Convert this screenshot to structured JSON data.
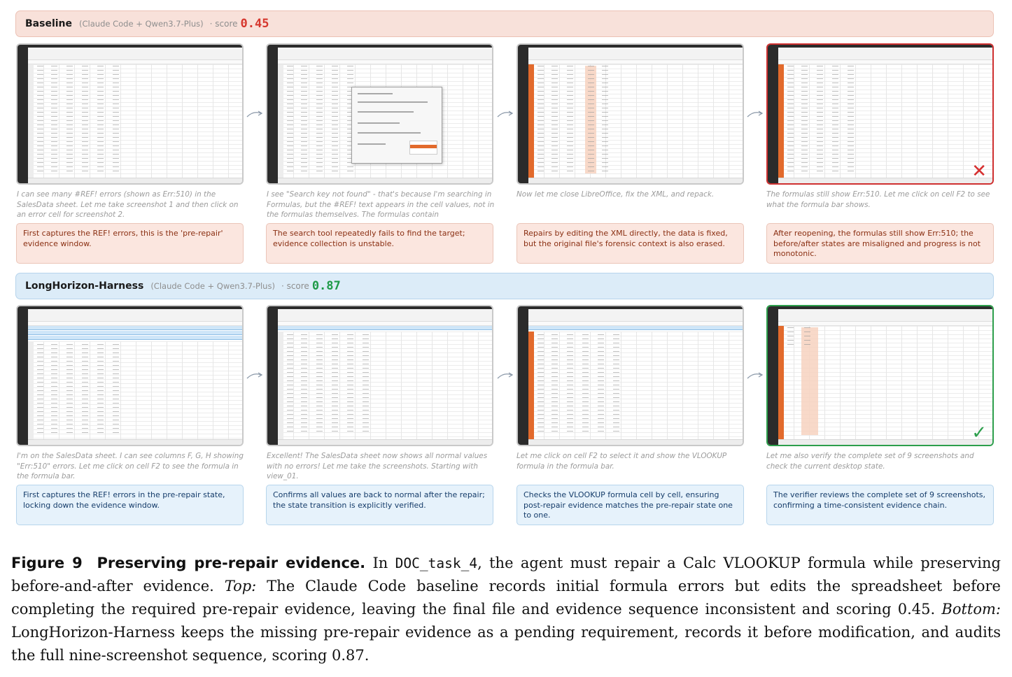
{
  "baseline": {
    "name": "Baseline",
    "subtitle": "(Claude Code + Qwen3.7-Plus)",
    "score_label": "· score",
    "score": "0.45",
    "notes": [
      "I can see many #REF! errors (shown as Err:510) in the SalesData sheet. Let me take screenshot 1 and then click on an error cell for screenshot 2.",
      "I see \"Search key not found\" - that's because I'm searching in Formulas, but the #REF! text appears in the cell values, not in the formulas themselves. The formulas contain `VLOOKUP(...)`...",
      "Now let me close LibreOffice, fix the XML, and repack.",
      "The formulas still show Err:510. Let me click on cell F2 to see what the formula bar shows."
    ],
    "cards": [
      "First captures the REF! errors, this is the 'pre-repair' evidence window.",
      "The search tool repeatedly fails to find the target; evidence collection is unstable.",
      "Repairs by editing the XML directly, the data is fixed, but the original file's forensic context is also erased.",
      "After reopening, the formulas still show Err:510; the before/after states are misaligned and progress is not monotonic."
    ],
    "final_mark": "✕"
  },
  "harness": {
    "name": "LongHorizon-Harness",
    "subtitle": "(Claude Code + Qwen3.7-Plus)",
    "score_label": "· score",
    "score": "0.87",
    "notes": [
      "I'm on the SalesData sheet. I can see columns F, G, H showing \"Err:510\" errors. Let me click on cell F2 to see the formula in the formula bar.",
      "Excellent! The SalesData sheet now shows all normal values with no errors! Let me take the screenshots. Starting with view_01.",
      "Let me click on cell F2 to select it and show the VLOOKUP formula in the formula bar.",
      "Let me also verify the complete set of 9 screenshots and check the current desktop state."
    ],
    "cards": [
      "First captures the REF! errors in the pre-repair state, locking down the evidence window.",
      "Confirms all values are back to normal after the repair; the state transition is explicitly verified.",
      "Checks the VLOOKUP formula cell by cell, ensuring post-repair evidence matches the pre-repair state one to one.",
      "The verifier reviews the complete set of 9 screenshots, confirming a time-consistent evidence chain."
    ],
    "final_mark": "✓"
  },
  "caption": {
    "figure": "Figure 9",
    "title": "Preserving pre-repair evidence.",
    "p1": "In",
    "task": "DOC_task_4",
    "p2": ", the agent must repair a Calc VLOOKUP formula while preserving before-and-after evidence.",
    "top": "Top:",
    "p3": "The Claude Code baseline records initial formula errors but edits the spreadsheet before completing the required pre-repair evidence, leaving the final file and evidence sequence inconsistent and scoring 0.45.",
    "bottom": "Bottom:",
    "p4": "LongHorizon-Harness keeps the missing pre-repair evidence as a pending requirement, records it before modification, and audits the full nine-screenshot sequence, scoring 0.87."
  },
  "colors": {
    "baseline_score": "#d6372e",
    "harness_score": "#1e9a48",
    "fail_border": "#cf3030",
    "pass_border": "#2d9f4c"
  },
  "icons": [
    "arrow-icon",
    "cross-icon",
    "check-icon"
  ]
}
